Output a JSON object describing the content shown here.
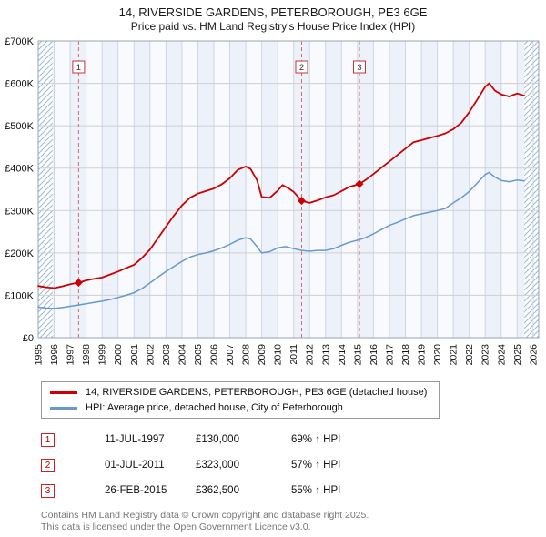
{
  "title": "14, RIVERSIDE GARDENS, PETERBOROUGH, PE3 6GE",
  "subtitle": "Price paid vs. HM Land Registry's House Price Index (HPI)",
  "colors": {
    "property_red": "#cc0000",
    "hpi_blue": "#6699cc",
    "event_dash_red": "#e06666",
    "band_blue": "#edf2fa",
    "band_white": "#f8fafd",
    "hatch_blue": "#9db8d6"
  },
  "chart_data": {
    "type": "line",
    "title": "14, RIVERSIDE GARDENS, PETERBOROUGH, PE3 6GE — Price paid vs. HPI",
    "units": "GBP thousands",
    "x_axis": {
      "range": [
        1995,
        2026.35
      ],
      "year_labels": [
        1995,
        1996,
        1997,
        1998,
        1999,
        2000,
        2001,
        2002,
        2003,
        2004,
        2005,
        2006,
        2007,
        2008,
        2009,
        2010,
        2011,
        2012,
        2013,
        2014,
        2015,
        2016,
        2017,
        2018,
        2019,
        2020,
        2021,
        2022,
        2023,
        2024,
        2025,
        2026
      ]
    },
    "y_axis": {
      "range": [
        0,
        700
      ],
      "tick_values": [
        0,
        100,
        200,
        300,
        400,
        500,
        600,
        700
      ],
      "tick_labels": [
        "£0",
        "£100K",
        "£200K",
        "£300K",
        "£400K",
        "£500K",
        "£600K",
        "£700K"
      ]
    },
    "grid": true,
    "legend_position": "below",
    "hatch_regions": [
      [
        1995,
        1995.9
      ],
      [
        2025.45,
        2026.35
      ]
    ],
    "series": [
      {
        "name": "14, RIVERSIDE GARDENS, PETERBOROUGH, PE3 6GE (detached house)",
        "color": "#cc0000",
        "width": 1.8,
        "x": [
          1995,
          1995.5,
          1996,
          1996.5,
          1997,
          1997.53,
          1998,
          1998.5,
          1999,
          1999.5,
          2000,
          2000.5,
          2001,
          2001.5,
          2002,
          2002.5,
          2003,
          2003.5,
          2004,
          2004.5,
          2005,
          2005.5,
          2006,
          2006.5,
          2007,
          2007.5,
          2008,
          2008.3,
          2008.7,
          2009,
          2009.5,
          2010,
          2010.3,
          2010.7,
          2011,
          2011.5,
          2012,
          2012.5,
          2013,
          2013.5,
          2014,
          2014.5,
          2015.12,
          2015.5,
          2016,
          2016.5,
          2017,
          2017.5,
          2018,
          2018.5,
          2019,
          2019.5,
          2020,
          2020.5,
          2021,
          2021.5,
          2022,
          2022.5,
          2023,
          2023.25,
          2023.6,
          2024,
          2024.5,
          2025,
          2025.45
        ],
        "values": [
          122,
          119,
          117,
          121,
          126,
          130,
          135,
          139,
          142,
          149,
          156,
          164,
          172,
          188,
          208,
          235,
          262,
          288,
          312,
          330,
          340,
          346,
          352,
          362,
          376,
          396,
          404,
          398,
          372,
          332,
          330,
          347,
          360,
          352,
          344,
          323,
          318,
          324,
          331,
          336,
          346,
          356,
          362.5,
          372,
          386,
          401,
          416,
          431,
          446,
          461,
          466,
          471,
          476,
          482,
          492,
          507,
          532,
          562,
          592,
          600,
          583,
          574,
          569,
          576,
          571
        ]
      },
      {
        "name": "HPI: Average price, detached house, City of Peterborough",
        "color": "#6699cc",
        "width": 1.5,
        "x": [
          1995,
          1995.5,
          1996,
          1996.5,
          1997,
          1997.5,
          1998,
          1998.5,
          1999,
          1999.5,
          2000,
          2000.5,
          2001,
          2001.5,
          2002,
          2002.5,
          2003,
          2003.5,
          2004,
          2004.5,
          2005,
          2005.5,
          2006,
          2006.5,
          2007,
          2007.5,
          2008,
          2008.3,
          2008.7,
          2009,
          2009.5,
          2010,
          2010.5,
          2011,
          2011.5,
          2012,
          2012.5,
          2013,
          2013.5,
          2014,
          2014.5,
          2015,
          2015.5,
          2016,
          2016.5,
          2017,
          2017.5,
          2018,
          2018.5,
          2019,
          2019.5,
          2020,
          2020.5,
          2021,
          2021.5,
          2022,
          2022.5,
          2023,
          2023.25,
          2023.6,
          2024,
          2024.5,
          2025,
          2025.45
        ],
        "values": [
          72,
          70,
          69,
          71,
          74,
          77,
          80,
          83,
          86,
          90,
          95,
          100,
          106,
          116,
          129,
          143,
          156,
          168,
          180,
          190,
          196,
          200,
          205,
          212,
          220,
          230,
          236,
          233,
          215,
          200,
          203,
          212,
          215,
          210,
          206,
          204,
          206,
          206,
          210,
          218,
          225,
          230,
          236,
          245,
          255,
          265,
          272,
          280,
          288,
          292,
          296,
          300,
          305,
          318,
          330,
          345,
          365,
          385,
          390,
          379,
          371,
          368,
          372,
          370
        ]
      }
    ],
    "markers": [
      {
        "label": "1",
        "x": 1997.53,
        "value": 130
      },
      {
        "label": "2",
        "x": 2011.5,
        "value": 323
      },
      {
        "label": "3",
        "x": 2015.12,
        "value": 362.5
      }
    ]
  },
  "legend": {
    "items": [
      {
        "label": "14, RIVERSIDE GARDENS, PETERBOROUGH, PE3 6GE (detached house)"
      },
      {
        "label": "HPI: Average price, detached house, City of Peterborough"
      }
    ]
  },
  "transactions": [
    {
      "num": "1",
      "date": "11-JUL-1997",
      "price": "£130,000",
      "hpi": "69% ↑ HPI"
    },
    {
      "num": "2",
      "date": "01-JUL-2011",
      "price": "£323,000",
      "hpi": "57% ↑ HPI"
    },
    {
      "num": "3",
      "date": "26-FEB-2015",
      "price": "£362,500",
      "hpi": "55% ↑ HPI"
    }
  ],
  "footer": {
    "line1": "Contains HM Land Registry data © Crown copyright and database right 2025.",
    "line2": "This data is licensed under the Open Government Licence v3.0."
  }
}
